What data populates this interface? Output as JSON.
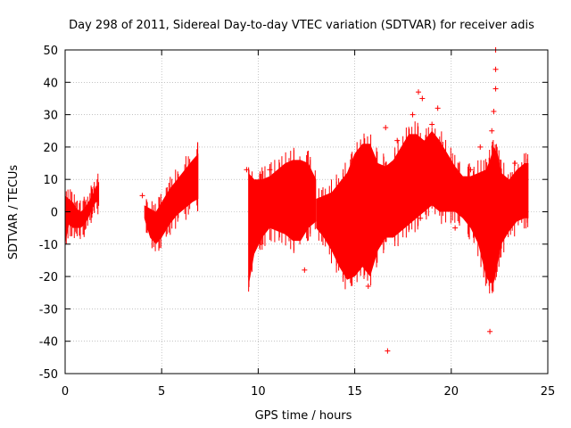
{
  "chart_data": {
    "type": "scatter",
    "title": "Day 298 of 2011, Sidereal Day-to-day VTEC variation (SDTVAR) for receiver adis",
    "xlabel": "GPS time / hours",
    "ylabel": "SDTVAR / TECUs",
    "xlim": [
      0,
      25
    ],
    "ylim": [
      -50,
      50
    ],
    "x_ticks": [
      0,
      5,
      10,
      15,
      20,
      25
    ],
    "y_ticks": [
      -50,
      -40,
      -30,
      -20,
      -10,
      0,
      10,
      20,
      30,
      40,
      50
    ],
    "x_tick_labels": [
      "0",
      "5",
      "10",
      "15",
      "20",
      "25"
    ],
    "y_tick_labels": [
      "-50",
      "-40",
      "-30",
      "-20",
      "-10",
      "0",
      "10",
      "20",
      "30",
      "40",
      "50"
    ],
    "grid": true,
    "marker": "+",
    "color": "#ff0000",
    "series": [
      {
        "name": "SDTVAR",
        "bands": [
          {
            "x": [
              0.0,
              0.2,
              0.4,
              0.6,
              0.8,
              1.0,
              1.2,
              1.4,
              1.6,
              1.75
            ],
            "lower": [
              -10,
              -4,
              -5,
              -5,
              -5,
              -4,
              -2,
              1,
              3,
              3
            ],
            "upper": [
              5,
              4,
              3,
              1,
              0,
              1,
              3,
              5,
              8,
              8
            ]
          },
          {
            "x": [
              4.1,
              4.4,
              4.7,
              5.0,
              5.4,
              5.8,
              6.2,
              6.6,
              6.9
            ],
            "lower": [
              -2,
              -8,
              -10,
              -8,
              -4,
              -1,
              1,
              3,
              4
            ],
            "upper": [
              2,
              1,
              0,
              3,
              7,
              10,
              13,
              16,
              18
            ]
          },
          {
            "x": [
              9.5,
              9.8,
              10.2,
              10.6,
              11.0,
              11.4,
              11.8,
              12.2,
              12.6,
              13.0
            ],
            "lower": [
              -23,
              -13,
              -8,
              -5,
              -6,
              -7,
              -9,
              -9,
              -5,
              -3
            ],
            "upper": [
              12,
              10,
              10,
              11,
              13,
              15,
              16,
              16,
              15,
              10
            ]
          },
          {
            "x": [
              13.0,
              13.4,
              13.8,
              14.2,
              14.6,
              15.0,
              15.4,
              15.8,
              16.2,
              16.6,
              17.0,
              17.4,
              17.8,
              18.2,
              18.6,
              19.0,
              19.4,
              19.8,
              20.2,
              20.6,
              21.0,
              21.4,
              21.8,
              22.0,
              22.2,
              22.4,
              22.6,
              23.0,
              23.4,
              23.8,
              24.0
            ],
            "lower": [
              -5,
              -8,
              -12,
              -17,
              -21,
              -20,
              -17,
              -20,
              -12,
              -8,
              -8,
              -6,
              -4,
              -2,
              0,
              2,
              0,
              0,
              0,
              -2,
              -5,
              -10,
              -20,
              -22,
              -22,
              -16,
              -10,
              -6,
              -3,
              -2,
              -2
            ],
            "upper": [
              4,
              5,
              6,
              9,
              12,
              18,
              21,
              21,
              15,
              14,
              16,
              20,
              24,
              24,
              22,
              25,
              22,
              18,
              14,
              11,
              11,
              12,
              13,
              16,
              20,
              18,
              12,
              10,
              13,
              15,
              15
            ]
          }
        ],
        "outliers": [
          {
            "x": 16.7,
            "y": -43
          },
          {
            "x": 22.0,
            "y": -37
          },
          {
            "x": 16.6,
            "y": 26
          },
          {
            "x": 18.3,
            "y": 37
          },
          {
            "x": 18.5,
            "y": 35
          },
          {
            "x": 18.0,
            "y": 30
          },
          {
            "x": 17.2,
            "y": 22
          },
          {
            "x": 22.3,
            "y": 50
          },
          {
            "x": 22.3,
            "y": 44
          },
          {
            "x": 22.3,
            "y": 38
          },
          {
            "x": 22.2,
            "y": 31
          },
          {
            "x": 22.1,
            "y": 25
          },
          {
            "x": 19.3,
            "y": 32
          },
          {
            "x": 19.0,
            "y": 27
          },
          {
            "x": 18.4,
            "y": -2
          },
          {
            "x": 20.2,
            "y": -5
          },
          {
            "x": 12.4,
            "y": -18
          },
          {
            "x": 10.6,
            "y": 13
          },
          {
            "x": 4.0,
            "y": 5
          },
          {
            "x": 9.4,
            "y": 13
          },
          {
            "x": 15.7,
            "y": -23
          },
          {
            "x": 16.3,
            "y": -10
          },
          {
            "x": 21.5,
            "y": 20
          },
          {
            "x": 14.0,
            "y": 6
          },
          {
            "x": 21.0,
            "y": 13
          },
          {
            "x": 19.6,
            "y": 8
          },
          {
            "x": 23.3,
            "y": 15
          }
        ]
      }
    ]
  }
}
